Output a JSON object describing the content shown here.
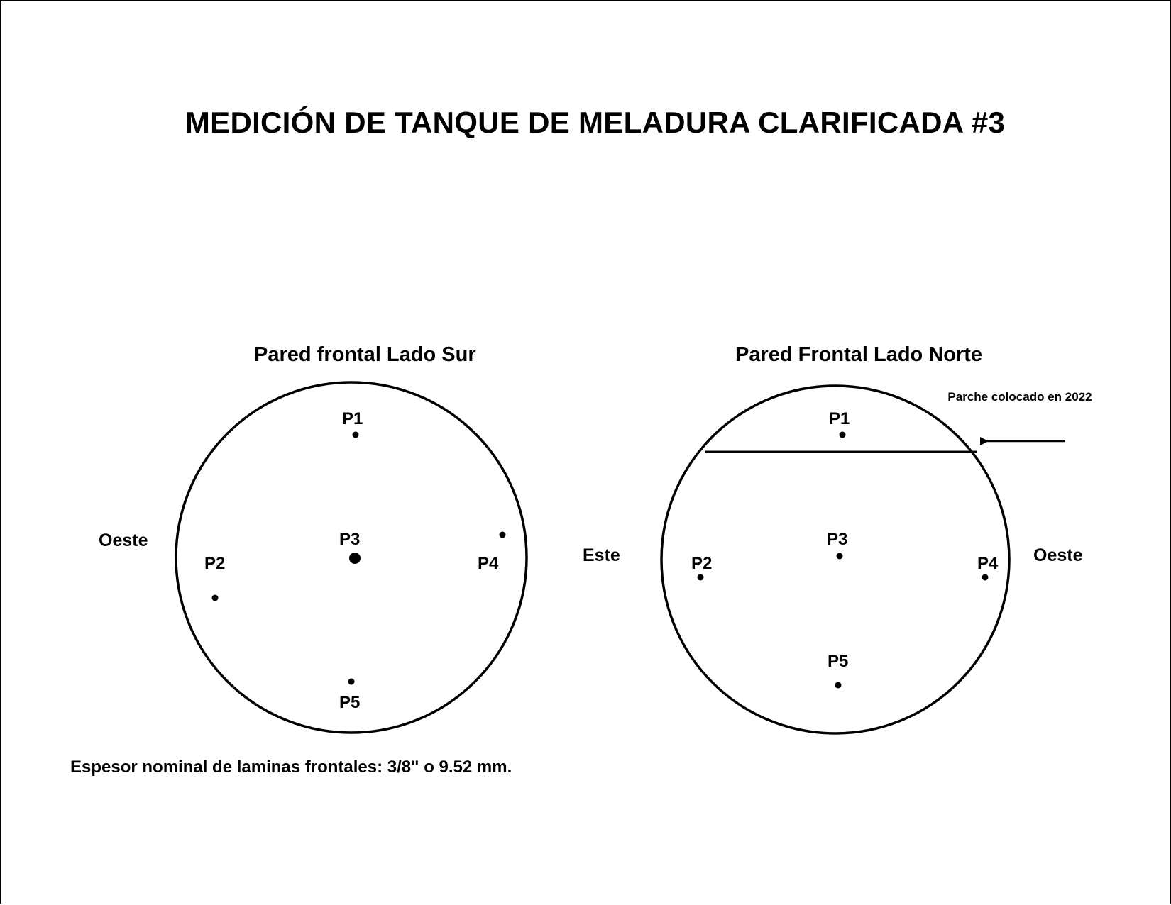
{
  "title": "MEDICIÓN DE TANQUE DE MELADURA CLARIFICADA #3",
  "south_wall": {
    "title": "Pared frontal Lado Sur",
    "left_side": "Oeste",
    "points": {
      "p1": "P1",
      "p2": "P2",
      "p3": "P3",
      "p4": "P4",
      "p5": "P5"
    }
  },
  "north_wall": {
    "title": "Pared Frontal Lado Norte",
    "left_side": "Este",
    "right_side": "Oeste",
    "points": {
      "p1": "P1",
      "p2": "P2",
      "p3": "P3",
      "p4": "P4",
      "p5": "P5"
    },
    "patch_note": "Parche colocado en 2022"
  },
  "footnote": "Espesor nominal de laminas frontales: 3/8\" o 9.52 mm."
}
